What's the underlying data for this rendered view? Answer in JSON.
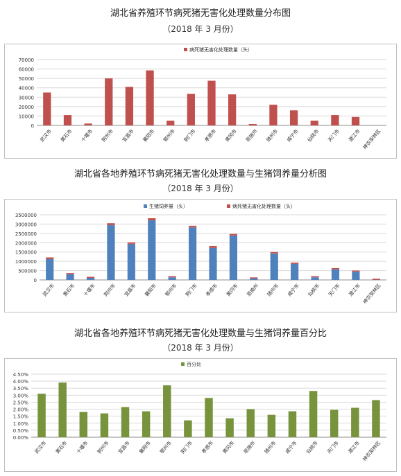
{
  "charts": [
    {
      "title": "湖北省养殖环节病死猪无害化处理数量分布图",
      "subtitle": "（2018 年 3 月份）"
    },
    {
      "title": "湖北省各地养殖环节病死猪无害化处理数量与生猪饲养量分析图",
      "subtitle": "（2018 年 3 月份）"
    },
    {
      "title": "湖北省各地养殖环节病死猪无害化处理数量与生猪饲养量百分比",
      "subtitle": "（2018 年 3 月份）"
    }
  ],
  "colors": {
    "red": "#c0504d",
    "blue": "#4f81bd",
    "green": "#77933c",
    "grid": "#d9d9d9"
  },
  "chart_data": [
    {
      "type": "bar",
      "title": "湖北省养殖环节病死猪无害化处理数量分布图",
      "subtitle": "（2018 年 3 月份）",
      "categories": [
        "武汉市",
        "黄石市",
        "十堰市",
        "荆州市",
        "宜昌市",
        "襄阳市",
        "鄂州市",
        "荆门市",
        "孝感市",
        "黄冈市",
        "恩施州",
        "随州市",
        "咸宁市",
        "仙桃市",
        "天门市",
        "潜江市",
        "神农架林区"
      ],
      "series": [
        {
          "name": "病死猪无害化处理数量（头）",
          "color": "#c0504d",
          "values": [
            35000,
            11000,
            2000,
            50000,
            41000,
            58500,
            5000,
            33500,
            47500,
            33000,
            1500,
            22000,
            16000,
            5000,
            11000,
            9000,
            0
          ]
        }
      ],
      "ylim": [
        0,
        70000
      ],
      "yticks": [
        0,
        10000,
        20000,
        30000,
        40000,
        50000,
        60000,
        70000
      ],
      "ytick_labels": [
        "0",
        "10000",
        "20000",
        "30000",
        "40000",
        "50000",
        "60000",
        "70000"
      ],
      "legend": "top-center",
      "grid": true
    },
    {
      "type": "bar",
      "stacked": true,
      "title": "湖北省各地养殖环节病死猪无害化处理数量与生猪饲养量分析图",
      "subtitle": "（2018 年 3 月份）",
      "categories": [
        "武汉市",
        "黄石市",
        "十堰市",
        "荆州市",
        "宜昌市",
        "襄阳市",
        "鄂州市",
        "荆门市",
        "孝感市",
        "黄冈市",
        "恩施州",
        "随州市",
        "咸宁市",
        "仙桃市",
        "天门市",
        "潜江市",
        "神农架林区"
      ],
      "series": [
        {
          "name": "生猪饲养量（头）",
          "color": "#4f81bd",
          "values": [
            1120000,
            300000,
            110000,
            2940000,
            1920000,
            3200000,
            140000,
            2820000,
            1720000,
            2380000,
            80000,
            1420000,
            860000,
            140000,
            570000,
            440000,
            10000
          ]
        },
        {
          "name": "病死猪无害化处理数量（头）",
          "color": "#c0504d",
          "values": [
            35000,
            11000,
            2000,
            50000,
            41000,
            58500,
            5000,
            33500,
            47500,
            33000,
            1500,
            22000,
            16000,
            5000,
            11000,
            9000,
            0
          ]
        }
      ],
      "ylim": [
        0,
        3500000
      ],
      "yticks": [
        0,
        500000,
        1000000,
        1500000,
        2000000,
        2500000,
        3000000,
        3500000
      ],
      "ytick_labels": [
        "0",
        "500000",
        "1000000",
        "1500000",
        "2000000",
        "2500000",
        "3000000",
        "3500000"
      ],
      "legend": "top-center",
      "grid": true
    },
    {
      "type": "bar",
      "title": "湖北省各地养殖环节病死猪无害化处理数量与生猪饲养量百分比",
      "subtitle": "（2018 年 3 月份）",
      "categories": [
        "武汉市",
        "黄石市",
        "十堰市",
        "荆州市",
        "宜昌市",
        "襄阳市",
        "鄂州市",
        "荆门市",
        "孝感市",
        "黄冈市",
        "恩施州",
        "随州市",
        "咸宁市",
        "仙桃市",
        "天门市",
        "潜江市",
        "神农架林区"
      ],
      "series": [
        {
          "name": "百分比",
          "color": "#77933c",
          "values": [
            3.1,
            3.9,
            1.8,
            1.7,
            2.15,
            1.85,
            3.7,
            1.2,
            2.8,
            1.35,
            2.0,
            1.6,
            1.85,
            3.3,
            1.95,
            2.1,
            2.65
          ]
        }
      ],
      "ylim": [
        0,
        4.5
      ],
      "yticks": [
        0,
        0.5,
        1,
        1.5,
        2,
        2.5,
        3,
        3.5,
        4,
        4.5
      ],
      "ytick_labels": [
        "0.00%",
        "0.50%",
        "1.00%",
        "1.50%",
        "2.00%",
        "2.50%",
        "3.00%",
        "3.50%",
        "4.00%",
        "4.50%"
      ],
      "legend": "top-center",
      "grid": true
    }
  ]
}
